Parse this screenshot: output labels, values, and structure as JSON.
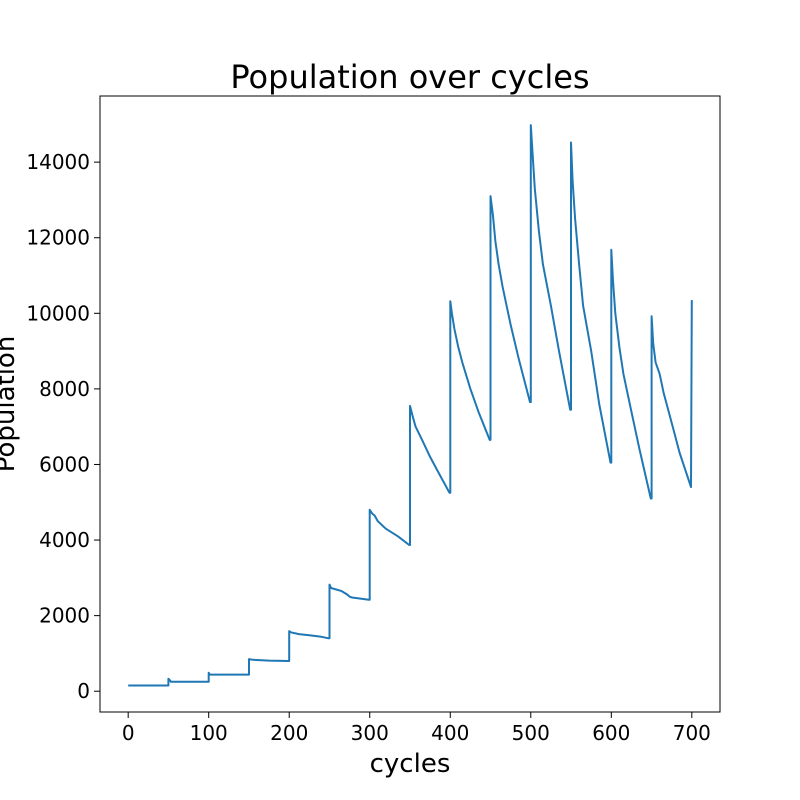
{
  "chart_data": {
    "type": "line",
    "title": "Population over cycles",
    "xlabel": "cycles",
    "ylabel": "Population",
    "xlim": [
      -35,
      735
    ],
    "ylim": [
      -550,
      15750
    ],
    "xticks": [
      0,
      100,
      200,
      300,
      400,
      500,
      600,
      700
    ],
    "yticks": [
      0,
      2000,
      4000,
      6000,
      8000,
      10000,
      12000,
      14000
    ],
    "grid": false,
    "line_color": "#1f77b4",
    "series": [
      {
        "x": [
          0,
          50,
          50,
          52,
          53,
          100,
          100,
          101,
          102,
          150,
          150,
          155,
          175,
          200,
          200,
          202,
          212,
          225,
          240,
          249,
          250,
          250,
          252,
          265,
          272,
          275,
          278,
          299,
          300,
          300,
          303,
          306,
          310,
          320,
          335,
          349,
          350,
          350,
          353,
          357,
          365,
          375,
          385,
          399,
          400,
          400,
          402,
          405,
          410,
          415,
          425,
          435,
          449,
          450,
          450,
          453,
          456,
          460,
          465,
          475,
          485,
          499,
          500,
          500,
          502,
          505,
          510,
          515,
          525,
          535,
          549,
          550,
          550,
          552,
          555,
          560,
          565,
          575,
          585,
          599,
          600,
          600,
          602,
          605,
          610,
          615,
          625,
          635,
          649,
          650,
          650,
          652,
          655,
          660,
          665,
          675,
          685,
          699,
          700
        ],
        "values": [
          150,
          150,
          330,
          280,
          250,
          250,
          490,
          450,
          440,
          440,
          850,
          830,
          810,
          800,
          1590,
          1560,
          1510,
          1480,
          1440,
          1400,
          1400,
          2820,
          2730,
          2650,
          2560,
          2500,
          2480,
          2420,
          2420,
          4800,
          4700,
          4650,
          4500,
          4300,
          4100,
          3870,
          3870,
          7550,
          7300,
          7000,
          6650,
          6200,
          5800,
          5250,
          5250,
          10320,
          10000,
          9600,
          9100,
          8700,
          8000,
          7400,
          6650,
          6650,
          13100,
          12600,
          11900,
          11300,
          10700,
          9700,
          8800,
          7650,
          7650,
          14980,
          14300,
          13300,
          12200,
          11300,
          10200,
          9000,
          7450,
          7450,
          14520,
          13500,
          12500,
          11300,
          10200,
          9000,
          7600,
          6050,
          6050,
          11680,
          10900,
          10000,
          9100,
          8400,
          7400,
          6400,
          5100,
          5100,
          9920,
          9200,
          8700,
          8400,
          7900,
          7100,
          6300,
          5400,
          10350
        ]
      }
    ]
  }
}
